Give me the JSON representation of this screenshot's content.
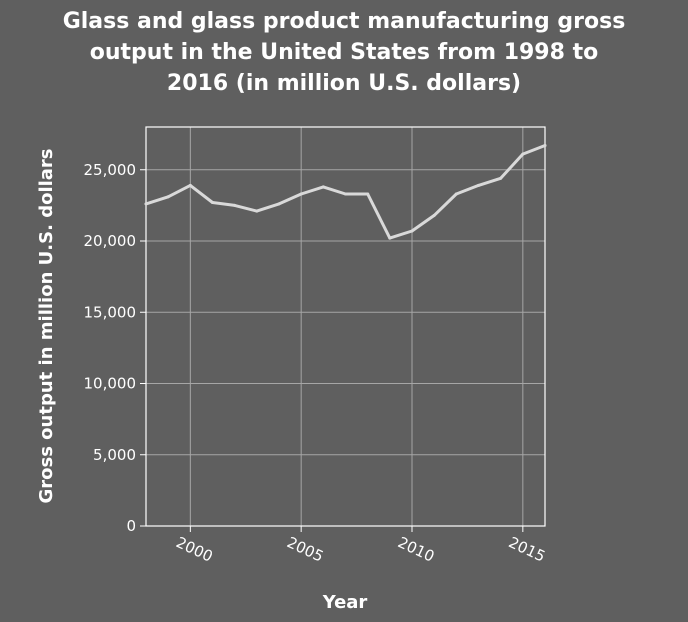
{
  "chart_data": {
    "type": "line",
    "title_lines": [
      "Glass and glass product manufacturing gross",
      "output in the United States from 1998 to",
      "2016 (in million U.S. dollars)"
    ],
    "xlabel": "Year",
    "ylabel": "Gross output in million U.S. dollars",
    "xlim": [
      1998,
      2016
    ],
    "ylim": [
      0,
      28000
    ],
    "x_ticks": [
      2000,
      2005,
      2010,
      2015
    ],
    "x_tick_labels": [
      "2000",
      "2005",
      "2010",
      "2015"
    ],
    "y_ticks": [
      0,
      5000,
      10000,
      15000,
      20000,
      25000
    ],
    "y_tick_labels": [
      "0",
      "5,000",
      "10,000",
      "15,000",
      "20,000",
      "25,000"
    ],
    "grid": true,
    "series": [
      {
        "x": [
          1998,
          1999,
          2000,
          2001,
          2002,
          2003,
          2004,
          2005,
          2006,
          2007,
          2008,
          2009,
          2010,
          2011,
          2012,
          2013,
          2014,
          2015,
          2016
        ],
        "values": [
          22600,
          23100,
          23900,
          22700,
          22500,
          22100,
          22600,
          23300,
          23800,
          23300,
          23300,
          20200,
          20700,
          21800,
          23300,
          23900,
          24400,
          26100,
          26700
        ]
      }
    ],
    "colors": {
      "background": "#5f5f5f",
      "line": "#d9d9d9",
      "grid": "#a6a6a6",
      "axes": "#ffffff",
      "text": "#ffffff"
    }
  }
}
